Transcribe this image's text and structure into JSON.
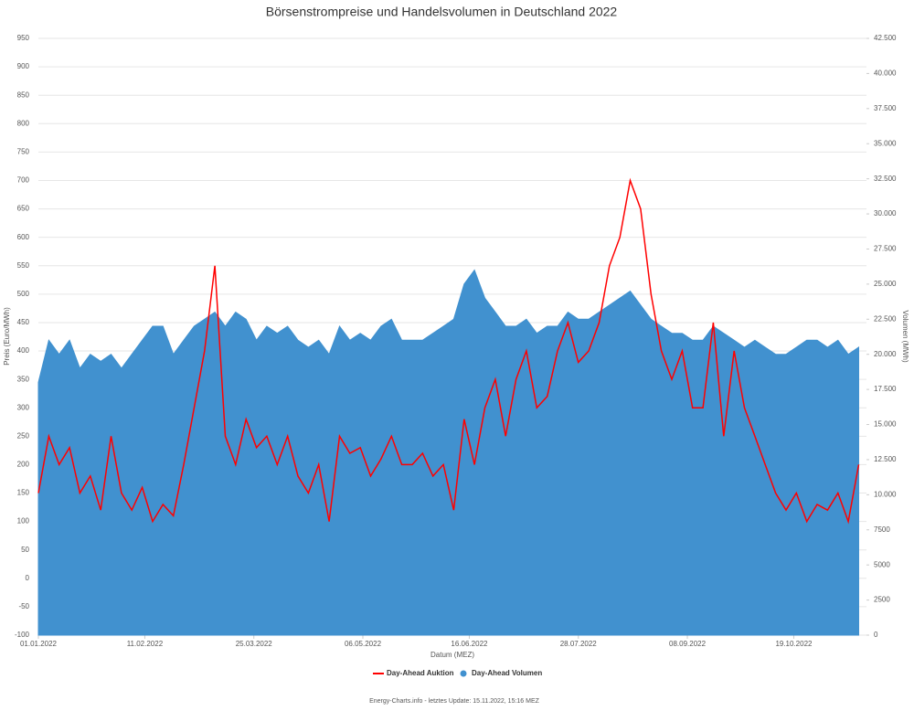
{
  "chart_data": {
    "type": "line",
    "title": "Börsenstrompreise und Handelsvolumen in Deutschland 2022",
    "x_label": "Datum (MEZ)",
    "y_label": "Preis (Euro/MWh)",
    "y2_label": "Volumen (MWh)",
    "footer": "Energy-Charts.info - letztes Update: 15.11.2022, 15:16 MEZ",
    "x": [
      "01.01.2022",
      "05.01.2022",
      "09.01.2022",
      "13.01.2022",
      "17.01.2022",
      "21.01.2022",
      "25.01.2022",
      "29.01.2022",
      "02.02.2022",
      "06.02.2022",
      "10.02.2022",
      "14.02.2022",
      "18.02.2022",
      "22.02.2022",
      "26.02.2022",
      "02.03.2022",
      "06.03.2022",
      "10.03.2022",
      "14.03.2022",
      "18.03.2022",
      "22.03.2022",
      "26.03.2022",
      "30.03.2022",
      "03.04.2022",
      "07.04.2022",
      "11.04.2022",
      "15.04.2022",
      "19.04.2022",
      "23.04.2022",
      "27.04.2022",
      "01.05.2022",
      "05.05.2022",
      "09.05.2022",
      "13.05.2022",
      "17.05.2022",
      "21.05.2022",
      "25.05.2022",
      "29.05.2022",
      "02.06.2022",
      "06.06.2022",
      "10.06.2022",
      "14.06.2022",
      "18.06.2022",
      "22.06.2022",
      "26.06.2022",
      "30.06.2022",
      "04.07.2022",
      "08.07.2022",
      "12.07.2022",
      "16.07.2022",
      "20.07.2022",
      "24.07.2022",
      "28.07.2022",
      "01.08.2022",
      "05.08.2022",
      "09.08.2022",
      "13.08.2022",
      "17.08.2022",
      "21.08.2022",
      "25.08.2022",
      "29.08.2022",
      "02.09.2022",
      "06.09.2022",
      "10.09.2022",
      "14.09.2022",
      "18.09.2022",
      "22.09.2022",
      "26.09.2022",
      "30.09.2022",
      "04.10.2022",
      "08.10.2022",
      "12.10.2022",
      "16.10.2022",
      "20.10.2022",
      "24.10.2022",
      "28.10.2022",
      "01.11.2022",
      "05.11.2022",
      "09.11.2022",
      "13.11.2022"
    ],
    "xlim": [
      "01.01.2022",
      "16.11.2022"
    ],
    "xticks": [
      "01.01.2022",
      "11.02.2022",
      "25.03.2022",
      "06.05.2022",
      "16.06.2022",
      "28.07.2022",
      "08.09.2022",
      "19.10.2022"
    ],
    "ylim": [
      -100,
      950
    ],
    "yticks": [
      -100,
      -50,
      0,
      50,
      100,
      150,
      200,
      250,
      300,
      350,
      400,
      450,
      500,
      550,
      600,
      650,
      700,
      750,
      800,
      850,
      900,
      950
    ],
    "y2lim": [
      0,
      42500
    ],
    "y2ticks": [
      0,
      2500,
      5000,
      7500,
      {
        "value": 10000,
        "label": "10.000"
      },
      {
        "value": 12500,
        "label": "12.500"
      },
      {
        "value": 15000,
        "label": "15.000"
      },
      {
        "value": 17500,
        "label": "17.500"
      },
      {
        "value": 20000,
        "label": "20.000"
      },
      {
        "value": 22500,
        "label": "22.500"
      },
      {
        "value": 25000,
        "label": "25.000"
      },
      {
        "value": 27500,
        "label": "27.500"
      },
      {
        "value": 30000,
        "label": "30.000"
      },
      {
        "value": 32500,
        "label": "32.500"
      },
      {
        "value": 35000,
        "label": "35.000"
      },
      {
        "value": 37500,
        "label": "37.500"
      },
      {
        "value": 40000,
        "label": "40.000"
      },
      {
        "value": 42500,
        "label": "42.500"
      }
    ],
    "grid": true,
    "series": [
      {
        "name": "Day-Ahead Auktion",
        "color": "#ff0000",
        "values": [
          150,
          250,
          200,
          230,
          150,
          180,
          120,
          250,
          150,
          120,
          160,
          100,
          130,
          110,
          200,
          300,
          400,
          550,
          250,
          200,
          280,
          230,
          250,
          200,
          250,
          180,
          150,
          200,
          100,
          250,
          220,
          230,
          180,
          210,
          250,
          200,
          200,
          220,
          180,
          200,
          120,
          280,
          200,
          300,
          350,
          250,
          350,
          400,
          300,
          320,
          400,
          450,
          380,
          400,
          450,
          550,
          600,
          700,
          650,
          500,
          400,
          350,
          400,
          300,
          300,
          450,
          250,
          400,
          300,
          250,
          200,
          150,
          120,
          150,
          100,
          130,
          120,
          150,
          100,
          200
        ]
      },
      {
        "name": "Day-Ahead Volumen",
        "color": "#4191cf",
        "axis": "y2",
        "values": [
          18000,
          21000,
          20000,
          21000,
          19000,
          20000,
          19500,
          20000,
          19000,
          20000,
          21000,
          22000,
          22000,
          20000,
          21000,
          22000,
          22500,
          23000,
          22000,
          23000,
          22500,
          21000,
          22000,
          21500,
          22000,
          21000,
          20500,
          21000,
          20000,
          22000,
          21000,
          21500,
          21000,
          22000,
          22500,
          21000,
          21000,
          21000,
          21500,
          22000,
          22500,
          25000,
          26000,
          24000,
          23000,
          22000,
          22000,
          22500,
          21500,
          22000,
          22000,
          23000,
          22500,
          22500,
          23000,
          23500,
          24000,
          24500,
          23500,
          22500,
          22000,
          21500,
          21500,
          21000,
          21000,
          22000,
          21500,
          21000,
          20500,
          21000,
          20500,
          20000,
          20000,
          20500,
          21000,
          21000,
          20500,
          21000,
          20000,
          20500
        ]
      }
    ]
  }
}
